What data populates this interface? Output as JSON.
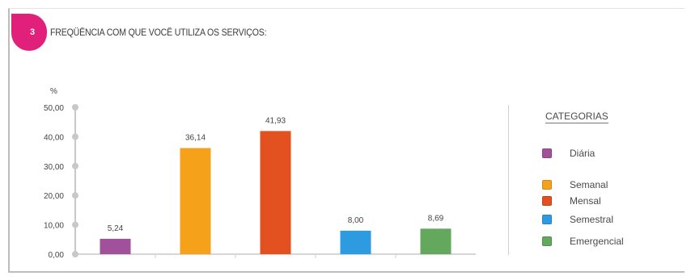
{
  "header": {
    "number": "3",
    "title": "FREQÜÊNCIA COM QUE VOCÊ UTILIZA OS SERVIÇOS:"
  },
  "colors": {
    "badge": "#e0207a"
  },
  "chart_data": {
    "type": "bar",
    "ylabel": "%",
    "ylim": [
      0,
      50
    ],
    "yticks": [
      "50,00",
      "40,00",
      "30,00",
      "20,00",
      "10,00",
      "0,00"
    ],
    "categories": [
      "Diária",
      "Semanal",
      "Mensal",
      "Semestral",
      "Emergencial"
    ],
    "values": [
      5.24,
      36.14,
      41.93,
      8.0,
      8.69
    ],
    "value_labels": [
      "5,24",
      "36,14",
      "41,93",
      "8,00",
      "8,69"
    ],
    "colors": [
      "#a0519a",
      "#f5a21a",
      "#e2511f",
      "#2e9be0",
      "#64a85e"
    ],
    "grid": false,
    "legend": {
      "title": "CATEGORIAS",
      "placement": "right"
    }
  }
}
